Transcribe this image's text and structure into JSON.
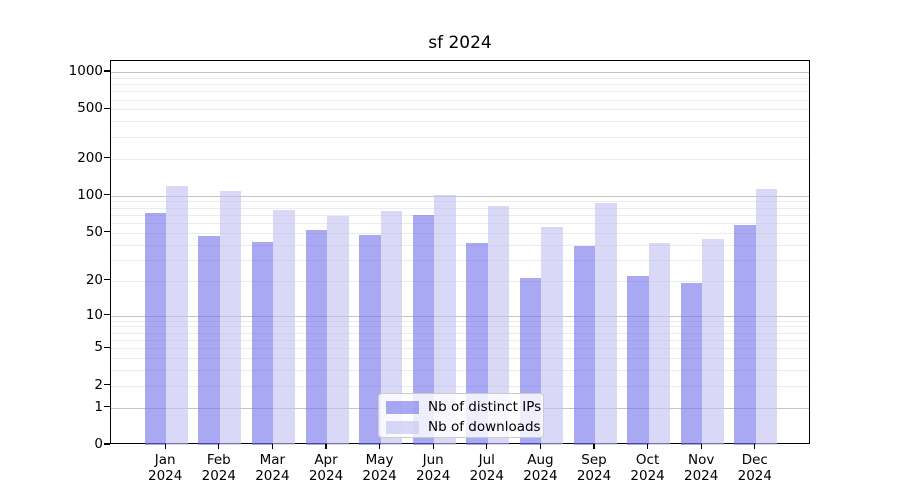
{
  "chart_data": {
    "type": "bar",
    "title": "sf 2024",
    "categories": [
      {
        "month": "Jan",
        "year": "2024"
      },
      {
        "month": "Feb",
        "year": "2024"
      },
      {
        "month": "Mar",
        "year": "2024"
      },
      {
        "month": "Apr",
        "year": "2024"
      },
      {
        "month": "May",
        "year": "2024"
      },
      {
        "month": "Jun",
        "year": "2024"
      },
      {
        "month": "Jul",
        "year": "2024"
      },
      {
        "month": "Aug",
        "year": "2024"
      },
      {
        "month": "Sep",
        "year": "2024"
      },
      {
        "month": "Oct",
        "year": "2024"
      },
      {
        "month": "Nov",
        "year": "2024"
      },
      {
        "month": "Dec",
        "year": "2024"
      }
    ],
    "series": [
      {
        "name": "Nb of distinct IPs",
        "color": "#7474ec",
        "values": [
          73,
          47,
          42,
          53,
          48,
          70,
          41,
          21,
          39,
          22,
          19,
          58
        ]
      },
      {
        "name": "Nb of downloads",
        "color": "#c2c2f2",
        "values": [
          120,
          110,
          77,
          69,
          76,
          101,
          83,
          56,
          87,
          41,
          44,
          113
        ]
      }
    ],
    "y_ticks": [
      0,
      1,
      2,
      5,
      10,
      20,
      50,
      100,
      200,
      500,
      1000
    ],
    "y_scale": "log1p",
    "y_axis_max": 1227,
    "bar_alpha": 0.62,
    "grid": true,
    "grid_major_color": "#c4c4c4",
    "grid_minor_color": "#ebebeb",
    "legend_position": "lower center",
    "xlabel": "",
    "ylabel": ""
  }
}
